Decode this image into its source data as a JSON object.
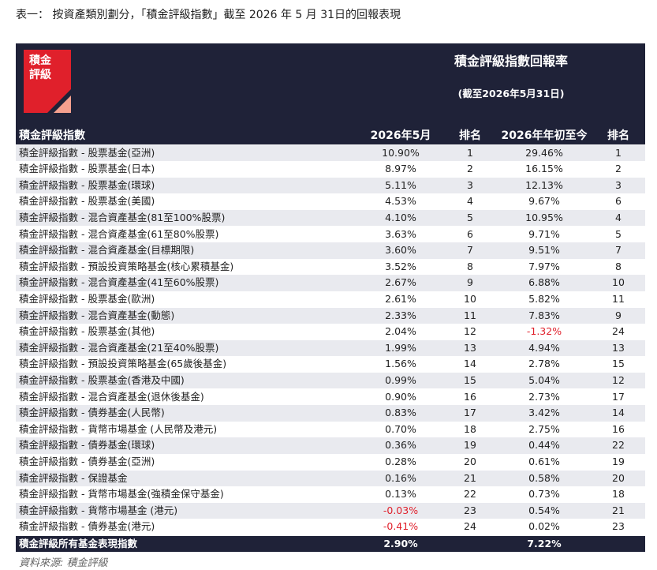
{
  "caption": "表一： 按資產類別劃分，「積金評級指數」截至 2026 年 5 月 31日的回報表現",
  "logo": [
    "積金",
    "評級"
  ],
  "header": {
    "title": "積金評級指數回報率",
    "subtitle": "(截至2026年5月31日)",
    "columns": [
      "積金評級指數",
      "2026年5月",
      "排名",
      "2026年年初至今",
      "排名"
    ]
  },
  "table": {
    "rows": [
      [
        "積金評級指數 - 股票基金(亞洲)",
        "10.90%",
        1,
        "29.46%",
        1
      ],
      [
        "積金評級指數 - 股票基金(日本)",
        "8.97%",
        2,
        "16.15%",
        2
      ],
      [
        "積金評級指數 - 股票基金(環球)",
        "5.11%",
        3,
        "12.13%",
        3
      ],
      [
        "積金評級指數 - 股票基金(美國)",
        "4.53%",
        4,
        "9.67%",
        6
      ],
      [
        "積金評級指數 - 混合資產基金(81至100%股票)",
        "4.10%",
        5,
        "10.95%",
        4
      ],
      [
        "積金評級指數 - 混合資產基金(61至80%股票)",
        "3.63%",
        6,
        "9.71%",
        5
      ],
      [
        "積金評級指數 - 混合資產基金(目標期限)",
        "3.60%",
        7,
        "9.51%",
        7
      ],
      [
        "積金評級指數 - 預設投資策略基金(核心累積基金)",
        "3.52%",
        8,
        "7.97%",
        8
      ],
      [
        "積金評級指數 - 混合資產基金(41至60%股票)",
        "2.67%",
        9,
        "6.88%",
        10
      ],
      [
        "積金評級指數 - 股票基金(歐洲)",
        "2.61%",
        10,
        "5.82%",
        11
      ],
      [
        "積金評級指數 - 混合資產基金(動態)",
        "2.33%",
        11,
        "7.83%",
        9
      ],
      [
        "積金評級指數 - 股票基金(其他)",
        "2.04%",
        12,
        "-1.32%",
        24
      ],
      [
        "積金評級指數 - 混合資產基金(21至40%股票)",
        "1.99%",
        13,
        "4.94%",
        13
      ],
      [
        "積金評級指數 - 預設投資策略基金(65歲後基金)",
        "1.56%",
        14,
        "2.78%",
        15
      ],
      [
        "積金評級指數 - 股票基金(香港及中國)",
        "0.99%",
        15,
        "5.04%",
        12
      ],
      [
        "積金評級指數 - 混合資產基金(退休後基金)",
        "0.90%",
        16,
        "2.73%",
        17
      ],
      [
        "積金評級指數 - 債券基金(人民幣)",
        "0.83%",
        17,
        "3.42%",
        14
      ],
      [
        "積金評級指數 - 貨幣市場基金 (人民幣及港元)",
        "0.70%",
        18,
        "2.75%",
        16
      ],
      [
        "積金評級指數 - 債券基金(環球)",
        "0.36%",
        19,
        "0.44%",
        22
      ],
      [
        "積金評級指數 - 債券基金(亞洲)",
        "0.28%",
        20,
        "0.61%",
        19
      ],
      [
        "積金評級指數 - 保證基金",
        "0.16%",
        21,
        "0.58%",
        20
      ],
      [
        "積金評級指數 - 貨幣市場基金(強積金保守基金)",
        "0.13%",
        22,
        "0.73%",
        18
      ],
      [
        "積金評級指數 - 貨幣市場基金 (港元)",
        "-0.03%",
        23,
        "0.54%",
        21
      ],
      [
        "積金評級指數 - 債券基金(港元)",
        "-0.41%",
        24,
        "0.02%",
        23
      ]
    ],
    "footer": [
      "積金評級所有基金表現指數",
      "2.90%",
      "7.22%"
    ]
  },
  "source": "資料來源:   積金評級"
}
